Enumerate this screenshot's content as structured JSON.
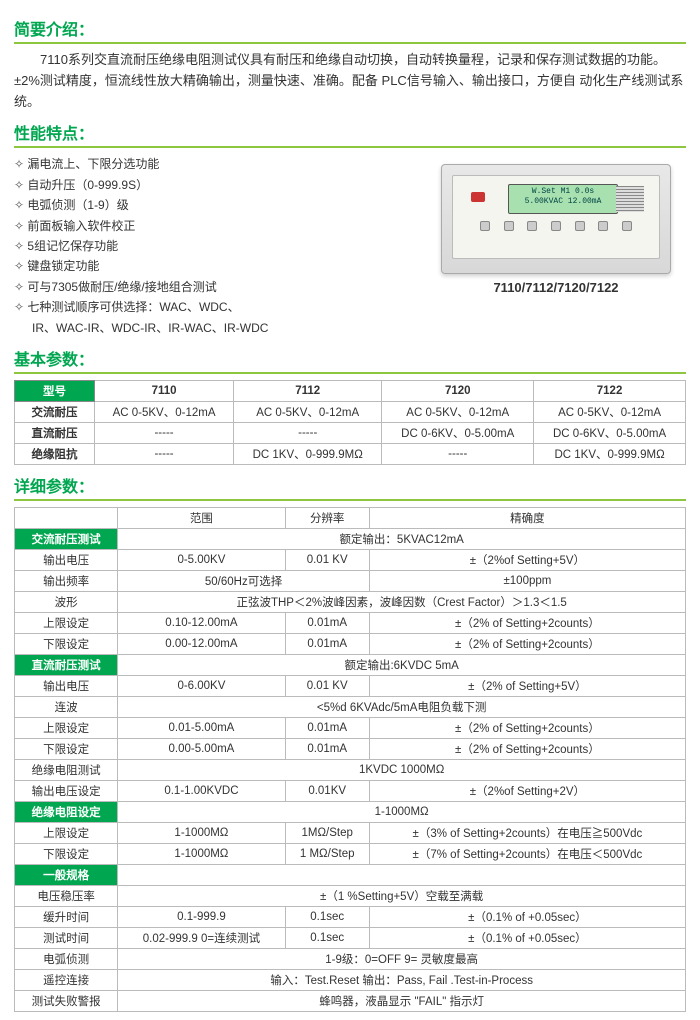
{
  "intro": {
    "title": "简要介绍：",
    "text": "7110系列交直流耐压绝缘电阻测试仪具有耐压和绝缘自动切换，自动转换量程，记录和保存测试数据的功能。±2%测试精度，恒流线性放大精确输出，测量快速、准确。配备 PLC信号输入、输出接口，方便自 动化生产线测试系统。"
  },
  "features": {
    "title": "性能特点：",
    "items": [
      "漏电流上、下限分选功能",
      "自动升压（0-999.9S）",
      "电弧侦测（1-9）级",
      "前面板输入软件校正",
      "5组记忆保存功能",
      "键盘锁定功能",
      "可与7305做耐压/绝缘/接地组合测试",
      "七种测试顺序可供选择：WAC、WDC、"
    ],
    "cont": "IR、WAC-IR、WDC-IR、IR-WAC、IR-WDC"
  },
  "device": {
    "line1": "W.Set  M1   0.0s",
    "line2": "5.00KVAC 12.00mA",
    "caption": "7110/7112/7120/7122"
  },
  "basic": {
    "title": "基本参数：",
    "model_label": "型号",
    "models": [
      "7110",
      "7112",
      "7120",
      "7122"
    ],
    "rows": [
      {
        "label": "交流耐压",
        "cells": [
          "AC 0-5KV、0-12mA",
          "AC 0-5KV、0-12mA",
          "AC 0-5KV、0-12mA",
          "AC 0-5KV、0-12mA"
        ]
      },
      {
        "label": "直流耐压",
        "cells": [
          "-----",
          "-----",
          "DC 0-6KV、0-5.00mA",
          "DC 0-6KV、0-5.00mA"
        ]
      },
      {
        "label": "绝缘阻抗",
        "cells": [
          "-----",
          "DC 1KV、0-999.9MΩ",
          "-----",
          "DC 1KV、0-999.9MΩ"
        ]
      }
    ]
  },
  "detail": {
    "title": "详细参数：",
    "head": {
      "range": "范围",
      "res": "分辨率",
      "acc": "精确度"
    },
    "groups": [
      {
        "label": "交流耐压测试",
        "full": "额定输出：5KVAC12mA",
        "rows": [
          {
            "label": "输出电压",
            "c": [
              "0-5.00KV",
              "0.01 KV",
              "±（2%of Setting+5V）"
            ]
          },
          {
            "label": "输出频率",
            "c": [
              "50/60Hz可选择",
              "",
              "±100ppm"
            ],
            "span12": true
          },
          {
            "label": "波形",
            "c": [
              "正弦波THP＜2%波峰因素，波峰因数（Crest Factor）＞1.3＜1.5"
            ],
            "full": true
          },
          {
            "label": "上限设定",
            "c": [
              "0.10-12.00mA",
              "0.01mA",
              "±（2% of Setting+2counts）"
            ]
          },
          {
            "label": "下限设定",
            "c": [
              "0.00-12.00mA",
              "0.01mA",
              "±（2% of Setting+2counts）"
            ]
          }
        ]
      },
      {
        "label": "直流耐压测试",
        "full": "额定输出:6KVDC 5mA",
        "rows": [
          {
            "label": "输出电压",
            "c": [
              "0-6.00KV",
              "0.01 KV",
              "±（2% of Setting+5V）"
            ]
          },
          {
            "label": "连波",
            "c": [
              "<5%d 6KVAdc/5mA电阻负载下测"
            ],
            "full": true
          },
          {
            "label": "上限设定",
            "c": [
              "0.01-5.00mA",
              "0.01mA",
              "±（2% of Setting+2counts）"
            ]
          },
          {
            "label": "下限设定",
            "c": [
              "0.00-5.00mA",
              "0.01mA",
              "±（2% of Setting+2counts）"
            ]
          },
          {
            "label": "绝缘电阻测试",
            "c": [
              "1KVDC 1000MΩ"
            ],
            "full": true
          },
          {
            "label": "输出电压设定",
            "c": [
              "0.1-1.00KVDC",
              "0.01KV",
              "±（2%of Setting+2V）"
            ]
          }
        ]
      },
      {
        "label": "绝缘电阻设定",
        "full": "1-1000MΩ",
        "nofull": true,
        "rows": [
          {
            "label": "上限设定",
            "c": [
              "1-1000MΩ",
              "1MΩ/Step",
              "±（3% of Setting+2counts）在电压≧500Vdc"
            ]
          },
          {
            "label": "下限设定",
            "c": [
              "1-1000MΩ",
              "1 MΩ/Step",
              "±（7% of Setting+2counts）在电压＜500Vdc"
            ]
          }
        ]
      },
      {
        "label": "一般规格",
        "plain": true,
        "rows": [
          {
            "label": "电压稳压率",
            "c": [
              "±（1 %Setting+5V）空载至满载"
            ],
            "full": true
          },
          {
            "label": "缓升时间",
            "c": [
              "0.1-999.9",
              "0.1sec",
              "±（0.1% of +0.05sec）"
            ]
          },
          {
            "label": "测试时间",
            "c": [
              "0.02-999.9 0=连续测试",
              "0.1sec",
              "±（0.1% of +0.05sec）"
            ]
          },
          {
            "label": "电弧侦测",
            "c": [
              "1-9级：0=OFF 9= 灵敏度最高"
            ],
            "full": true
          },
          {
            "label": "遥控连接",
            "c": [
              "输入：Test.Reset  输出：Pass, Fail .Test-in-Process"
            ],
            "full": true
          },
          {
            "label": "测试失败警报",
            "c": [
              "蜂鸣器，液晶显示 \"FAIL\" 指示灯"
            ],
            "full": true
          }
        ]
      }
    ]
  }
}
